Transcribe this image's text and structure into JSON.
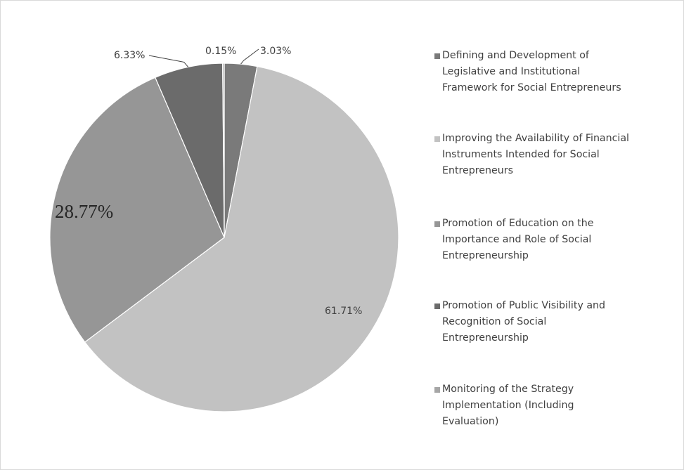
{
  "chart_data": {
    "type": "pie",
    "title": "",
    "slices": [
      {
        "label": "Defining and Development of Legislative and Institutional Framework for Social Entrepreneurs",
        "legend_lines": [
          "Defining and Development of",
          "Legislative and Institutional",
          "Framework for Social Entrepreneurs"
        ],
        "value": 3.03,
        "display": "3.03%",
        "color": "#7a7a7a"
      },
      {
        "label": "Improving the Availability of Financial Instruments Intended for Social Entrepreneurs",
        "legend_lines": [
          "Improving the Availability of Financial",
          "Instruments Intended for Social",
          "Entrepreneurs"
        ],
        "value": 61.71,
        "display": "61.71%",
        "color": "#c2c2c2"
      },
      {
        "label": "Promotion of Education on the Importance and Role of Social Entrepreneurship",
        "legend_lines": [
          "Promotion of Education on the",
          "Importance and Role of Social",
          "Entrepreneurship"
        ],
        "value": 28.77,
        "display": "28.77%",
        "color": "#969696"
      },
      {
        "label": "Promotion of Public Visibility and Recognition of Social Entrepreneurship",
        "legend_lines": [
          "Promotion of Public Visibility and",
          "Recognition of Social",
          "Entrepreneurship"
        ],
        "value": 6.33,
        "display": "6.33%",
        "color": "#6b6b6b"
      },
      {
        "label": "Monitoring of the Strategy Implementation (Including Evaluation)",
        "legend_lines": [
          "Monitoring of the Strategy",
          "Implementation (Including",
          "Evaluation)"
        ],
        "value": 0.15,
        "display": "0.15%",
        "color": "#a6a6a6"
      }
    ],
    "start_angle": "12 o'clock",
    "direction": "clockwise",
    "legend_position": "right"
  }
}
